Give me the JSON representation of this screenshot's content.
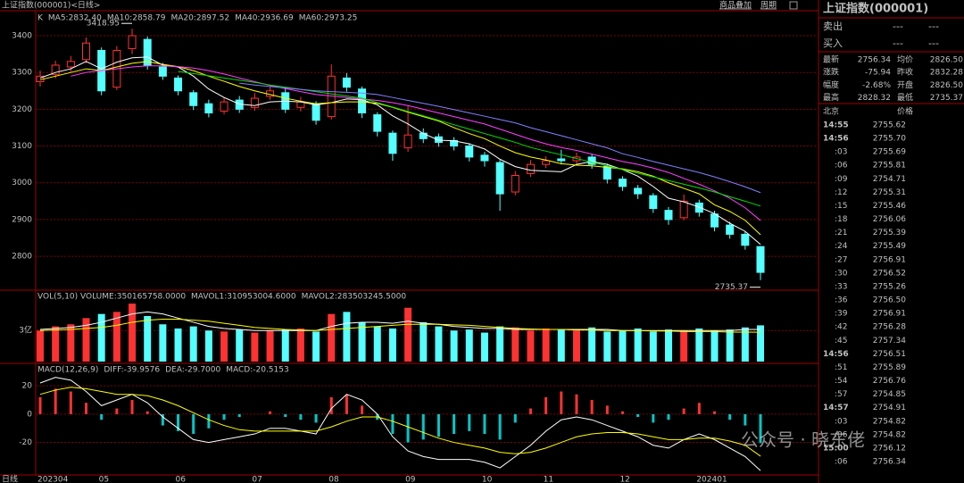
{
  "header": {
    "title": "上证指数(000001)<日线>",
    "links": [
      "商品叠加",
      "周期"
    ]
  },
  "chart_data": [
    {
      "type": "candlestick",
      "legend_label": "K",
      "x_axis_label": "日线",
      "categories": [
        "202304",
        null,
        null,
        null,
        "05",
        null,
        null,
        null,
        null,
        "06",
        null,
        null,
        null,
        null,
        "07",
        null,
        null,
        null,
        null,
        "08",
        null,
        null,
        null,
        null,
        "09",
        null,
        null,
        null,
        null,
        "10",
        null,
        null,
        null,
        "11",
        null,
        null,
        null,
        null,
        "12",
        null,
        null,
        null,
        null,
        "202401",
        null,
        null,
        null,
        null
      ],
      "open": [
        3275,
        3295,
        3315,
        3335,
        3360,
        3260,
        3365,
        3390,
        3315,
        3285,
        3245,
        3215,
        3195,
        3225,
        3205,
        3235,
        3245,
        3205,
        3215,
        3180,
        3285,
        3255,
        3185,
        3135,
        3095,
        3135,
        3125,
        3115,
        3100,
        3075,
        3055,
        2975,
        3025,
        3050,
        3065,
        3060,
        3070,
        3045,
        3010,
        2985,
        2965,
        2925,
        2905,
        2945,
        2915,
        2885,
        2860,
        2826.5
      ],
      "high": [
        3305,
        3332,
        3345,
        3395,
        3368,
        3372,
        3418.95,
        3398,
        3326,
        3292,
        3252,
        3226,
        3232,
        3236,
        3244,
        3262,
        3256,
        3234,
        3222,
        3322,
        3298,
        3262,
        3192,
        3142,
        3210,
        3148,
        3134,
        3124,
        3108,
        3084,
        3062,
        3032,
        3062,
        3072,
        3090,
        3082,
        3078,
        3052,
        3018,
        2994,
        2972,
        2934,
        2968,
        2954,
        2924,
        2894,
        2868,
        2828.32
      ],
      "low": [
        3262,
        3284,
        3302,
        3325,
        3238,
        3252,
        3350,
        3308,
        3280,
        3238,
        3198,
        3178,
        3186,
        3190,
        3196,
        3226,
        3190,
        3194,
        3158,
        3172,
        3248,
        3176,
        3126,
        3060,
        3084,
        3108,
        3098,
        3088,
        3058,
        3044,
        2924,
        2966,
        3016,
        3040,
        3050,
        3050,
        3038,
        2998,
        2978,
        2956,
        2918,
        2886,
        2898,
        2908,
        2868,
        2848,
        2818,
        2735.37
      ],
      "close": [
        3290,
        3320,
        3330,
        3380,
        3250,
        3360,
        3400,
        3320,
        3290,
        3250,
        3210,
        3190,
        3220,
        3200,
        3230,
        3250,
        3200,
        3220,
        3170,
        3290,
        3260,
        3190,
        3140,
        3080,
        3130,
        3120,
        3110,
        3100,
        3070,
        3060,
        2970,
        3020,
        3050,
        3060,
        3060,
        3070,
        3050,
        3010,
        2990,
        2970,
        2930,
        2900,
        2950,
        2920,
        2880,
        2860,
        2830,
        2756.34
      ],
      "up_color": "#ff3232",
      "down_color": "#54ffff",
      "series": [
        {
          "name": "MA5:2832.40",
          "color": "#ffffff",
          "values": [
            3285,
            3300,
            3310,
            3330,
            3310,
            3328,
            3340,
            3342,
            3320,
            3315,
            3290,
            3255,
            3232,
            3214,
            3210,
            3220,
            3222,
            3220,
            3212,
            3218,
            3228,
            3226,
            3212,
            3182,
            3160,
            3134,
            3116,
            3114,
            3106,
            3092,
            3064,
            3044,
            3034,
            3032,
            3030,
            3050,
            3058,
            3050,
            3036,
            3018,
            2990,
            2958,
            2948,
            2934,
            2916,
            2890,
            2868,
            2832.4
          ]
        },
        {
          "name": "MA10:2858.79",
          "color": "#ffff00",
          "values": [
            3280,
            3290,
            3300,
            3310,
            3305,
            3315,
            3325,
            3330,
            3322,
            3316,
            3305,
            3290,
            3276,
            3262,
            3250,
            3240,
            3230,
            3222,
            3215,
            3218,
            3220,
            3220,
            3216,
            3205,
            3192,
            3180,
            3168,
            3150,
            3134,
            3120,
            3100,
            3082,
            3070,
            3062,
            3052,
            3048,
            3046,
            3042,
            3038,
            3030,
            3018,
            3000,
            2985,
            2970,
            2940,
            2922,
            2898,
            2858.79
          ]
        },
        {
          "name": "MA20:2897.52",
          "color": "#ff40ff",
          "values": [
            null,
            null,
            3290,
            3300,
            3305,
            3310,
            3315,
            3318,
            3318,
            3316,
            3312,
            3305,
            3296,
            3285,
            3275,
            3265,
            3256,
            3248,
            3240,
            3236,
            3232,
            3228,
            3224,
            3218,
            3210,
            3200,
            3190,
            3180,
            3170,
            3160,
            3146,
            3132,
            3118,
            3106,
            3096,
            3088,
            3078,
            3068,
            3058,
            3050,
            3040,
            3028,
            3012,
            2996,
            2978,
            2958,
            2932,
            2897.52
          ]
        },
        {
          "name": "MA40:2936.69",
          "color": "#00e000",
          "values": [
            null,
            null,
            null,
            null,
            null,
            null,
            null,
            null,
            null,
            3303,
            3297,
            3291,
            3285,
            3279,
            3273,
            3266,
            3260,
            3254,
            3248,
            3242,
            3236,
            3230,
            3218,
            3206,
            3194,
            3182,
            3170,
            3158,
            3146,
            3134,
            3122,
            3110,
            3096,
            3086,
            3076,
            3066,
            3056,
            3046,
            3036,
            3026,
            3016,
            3006,
            2996,
            2986,
            2975,
            2962,
            2950,
            2936.69
          ]
        },
        {
          "name": "MA60:2973.25",
          "color": "#8080ff",
          "values": [
            null,
            null,
            null,
            null,
            null,
            null,
            null,
            null,
            null,
            null,
            null,
            null,
            null,
            3271,
            3266,
            3262,
            3258,
            3254,
            3250,
            3248,
            3246,
            3244,
            3240,
            3232,
            3224,
            3216,
            3208,
            3199,
            3190,
            3181,
            3172,
            3163,
            3150,
            3139,
            3128,
            3117,
            3106,
            3095,
            3079,
            3069,
            3058,
            3048,
            3038,
            3028,
            3016,
            3003,
            2989,
            2973.25
          ]
        }
      ],
      "annotations": [
        {
          "text": "3418.95",
          "index": 6,
          "value": 3418.95
        },
        {
          "text": "2735.37",
          "index": 47,
          "value": 2735.37
        }
      ],
      "ylim": [
        2708,
        3468
      ],
      "yticks": [
        2800,
        2900,
        3000,
        3100,
        3200,
        3300,
        3400
      ],
      "grid": true
    },
    {
      "type": "volume",
      "legend": [
        "VOL(5,10) VOLUME:350165758.0000",
        "MAVOL1:310953004.6000",
        "MAVOL2:283503245.5000"
      ],
      "values": [
        300000000,
        340000000,
        360000000,
        420000000,
        460000000,
        480000000,
        560000000,
        440000000,
        360000000,
        320000000,
        340000000,
        300000000,
        290000000,
        310000000,
        280000000,
        300000000,
        310000000,
        320000000,
        290000000,
        460000000,
        480000000,
        380000000,
        340000000,
        320000000,
        520000000,
        380000000,
        340000000,
        300000000,
        310000000,
        280000000,
        340000000,
        330000000,
        300000000,
        320000000,
        310000000,
        300000000,
        330000000,
        290000000,
        300000000,
        320000000,
        290000000,
        310000000,
        300000000,
        320000000,
        300000000,
        310000000,
        330000000,
        350165758
      ],
      "series": [
        {
          "color": "#ffffff",
          "values": [
            310000000,
            320000000,
            330000000,
            350000000,
            380000000,
            420000000,
            460000000,
            480000000,
            460000000,
            420000000,
            380000000,
            340000000,
            320000000,
            310000000,
            300000000,
            300000000,
            300000000,
            300000000,
            300000000,
            340000000,
            370000000,
            380000000,
            380000000,
            370000000,
            390000000,
            370000000,
            360000000,
            340000000,
            330000000,
            320000000,
            320000000,
            310000000,
            310000000,
            310000000,
            310000000,
            310000000,
            310000000,
            310000000,
            300000000,
            300000000,
            300000000,
            300000000,
            300000000,
            300000000,
            300000000,
            300000000,
            310000000,
            310953004.6
          ]
        },
        {
          "color": "#ffff00",
          "values": [
            300000000,
            305000000,
            310000000,
            320000000,
            330000000,
            350000000,
            380000000,
            400000000,
            410000000,
            410000000,
            400000000,
            390000000,
            370000000,
            350000000,
            330000000,
            320000000,
            310000000,
            305000000,
            300000000,
            310000000,
            320000000,
            330000000,
            340000000,
            350000000,
            360000000,
            360000000,
            360000000,
            355000000,
            350000000,
            340000000,
            330000000,
            320000000,
            315000000,
            310000000,
            310000000,
            305000000,
            305000000,
            300000000,
            300000000,
            300000000,
            295000000,
            295000000,
            290000000,
            290000000,
            290000000,
            285000000,
            285000000,
            283503245.5
          ]
        }
      ],
      "ylim": [
        0,
        690000000
      ],
      "yticks": [
        {
          "value": 300000000,
          "label": "3亿"
        }
      ]
    },
    {
      "type": "macd",
      "legend": [
        "MACD(12,26,9)",
        "DIFF:-39.9576",
        "DEA:-29.7000",
        "MACD:-20.5153"
      ],
      "values": [
        12,
        18,
        16,
        8,
        -4,
        4,
        10,
        2,
        -8,
        -12,
        -14,
        -10,
        -4,
        -2,
        0,
        2,
        -2,
        -4,
        -6,
        12,
        14,
        6,
        -4,
        -14,
        -20,
        -18,
        -16,
        -14,
        -12,
        -14,
        -18,
        -6,
        4,
        12,
        16,
        14,
        10,
        6,
        2,
        -2,
        -6,
        -4,
        4,
        8,
        2,
        -4,
        -8,
        -20.5153
      ],
      "series": [
        {
          "color": "#ffffff",
          "values": [
            22,
            26,
            24,
            16,
            6,
            10,
            14,
            8,
            -2,
            -10,
            -18,
            -20,
            -18,
            -16,
            -14,
            -10,
            -10,
            -12,
            -14,
            4,
            14,
            10,
            0,
            -16,
            -26,
            -30,
            -32,
            -32,
            -32,
            -34,
            -38,
            -30,
            -22,
            -12,
            -4,
            -2,
            -4,
            -8,
            -12,
            -16,
            -22,
            -24,
            -18,
            -14,
            -18,
            -24,
            -30,
            -39.9576
          ]
        },
        {
          "color": "#ffff00",
          "values": [
            14,
            17,
            19,
            18,
            16,
            14,
            14,
            13,
            10,
            6,
            1,
            -4,
            -8,
            -11,
            -12,
            -12,
            -12,
            -12,
            -12,
            -9,
            -5,
            -2,
            -2,
            -5,
            -9,
            -13,
            -17,
            -20,
            -22,
            -24,
            -27,
            -28,
            -27,
            -24,
            -20,
            -16,
            -14,
            -13,
            -13,
            -14,
            -16,
            -18,
            -18,
            -17,
            -17,
            -19,
            -22,
            -29.7
          ]
        }
      ],
      "ylim": [
        -43,
        34
      ],
      "yticks": [
        20,
        0,
        -20
      ]
    }
  ],
  "side_panel": {
    "title": "上证指数(000001)",
    "orders": [
      [
        "卖出",
        "---",
        "---"
      ],
      [
        "买入",
        "---",
        "---"
      ]
    ],
    "quote": [
      [
        "最新",
        "2756.34",
        "均价",
        "2826.50"
      ],
      [
        "涨跌",
        "-75.94",
        "昨收",
        "2832.28"
      ],
      [
        "幅度",
        "-2.68%",
        "开盘",
        "2826.50"
      ],
      [
        "最高",
        "2828.32",
        "最低",
        "2735.37"
      ]
    ],
    "trades_header": [
      "北京",
      "价格"
    ],
    "trades": [
      [
        "14:55",
        "2755.62"
      ],
      [
        "14:56",
        "2755.70"
      ],
      [
        ":03",
        "2755.69"
      ],
      [
        ":06",
        "2755.81"
      ],
      [
        ":09",
        "2754.71"
      ],
      [
        ":12",
        "2755.31"
      ],
      [
        ":15",
        "2755.46"
      ],
      [
        ":18",
        "2756.06"
      ],
      [
        ":21",
        "2755.39"
      ],
      [
        ":24",
        "2755.49"
      ],
      [
        ":27",
        "2756.91"
      ],
      [
        ":30",
        "2756.52"
      ],
      [
        ":33",
        "2755.26"
      ],
      [
        ":36",
        "2756.50"
      ],
      [
        ":39",
        "2756.91"
      ],
      [
        ":42",
        "2756.28"
      ],
      [
        ":45",
        "2757.34"
      ],
      [
        "14:56",
        "2756.51"
      ],
      [
        ":51",
        "2755.89"
      ],
      [
        ":54",
        "2756.76"
      ],
      [
        ":57",
        "2754.85"
      ],
      [
        "14:57",
        "2754.91"
      ],
      [
        ":03",
        "2754.82"
      ],
      [
        ":06",
        "2754.82"
      ],
      [
        "15:00",
        "2756.12"
      ],
      [
        ":06",
        "2756.34"
      ]
    ]
  },
  "watermark": "公众号 · 晓东佬"
}
